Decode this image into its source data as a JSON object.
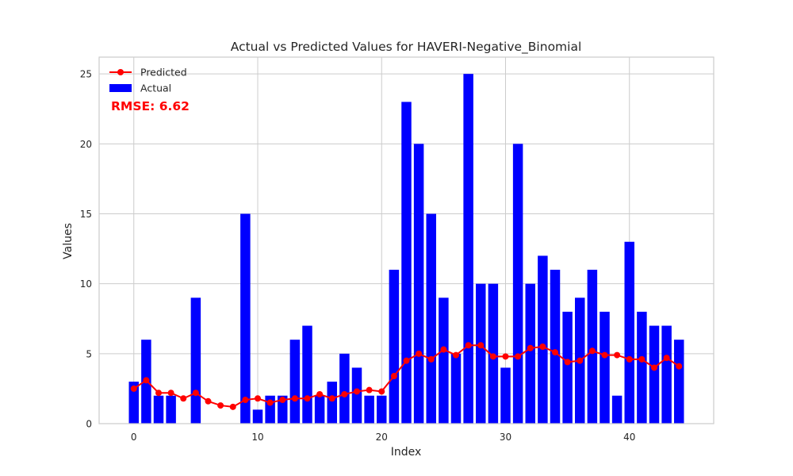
{
  "chart_data": {
    "type": "bar",
    "title": "Actual vs Predicted Values for HAVERI-Negative_Binomial",
    "xlabel": "Index",
    "ylabel": "Values",
    "xlim": [
      -2.8,
      46.8
    ],
    "ylim": [
      0,
      26.2
    ],
    "x_ticks": [
      0,
      10,
      20,
      30,
      40
    ],
    "y_ticks": [
      0,
      5,
      10,
      15,
      20,
      25
    ],
    "grid": true,
    "legend_position": "top-left",
    "annotation": "RMSE: 6.62",
    "x": [
      0,
      1,
      2,
      3,
      4,
      5,
      6,
      7,
      8,
      9,
      10,
      11,
      12,
      13,
      14,
      15,
      16,
      17,
      18,
      19,
      20,
      21,
      22,
      23,
      24,
      25,
      26,
      27,
      28,
      29,
      30,
      31,
      32,
      33,
      34,
      35,
      36,
      37,
      38,
      39,
      40,
      41,
      42,
      43,
      44
    ],
    "series": [
      {
        "name": "Actual",
        "kind": "bar",
        "color": "#0000ff",
        "values": [
          3,
          6,
          2,
          2,
          0,
          9,
          0,
          0,
          0,
          15,
          1,
          2,
          2,
          6,
          7,
          2,
          3,
          5,
          4,
          2,
          2,
          11,
          23,
          20,
          15,
          9,
          5,
          25,
          10,
          10,
          4,
          20,
          10,
          12,
          11,
          8,
          9,
          11,
          8,
          2,
          13,
          8,
          7,
          7,
          6
        ]
      },
      {
        "name": "Predicted",
        "kind": "line",
        "color": "#ff0000",
        "values": [
          2.5,
          3.1,
          2.2,
          2.2,
          1.8,
          2.2,
          1.6,
          1.3,
          1.2,
          1.7,
          1.8,
          1.5,
          1.7,
          1.8,
          1.8,
          2.1,
          1.8,
          2.1,
          2.3,
          2.4,
          2.3,
          3.4,
          4.5,
          5.0,
          4.6,
          5.3,
          4.9,
          5.6,
          5.6,
          4.8,
          4.8,
          4.8,
          5.4,
          5.5,
          5.1,
          4.4,
          4.5,
          5.2,
          4.9,
          4.9,
          4.6,
          4.6,
          4.0,
          4.7,
          4.1
        ]
      }
    ]
  }
}
